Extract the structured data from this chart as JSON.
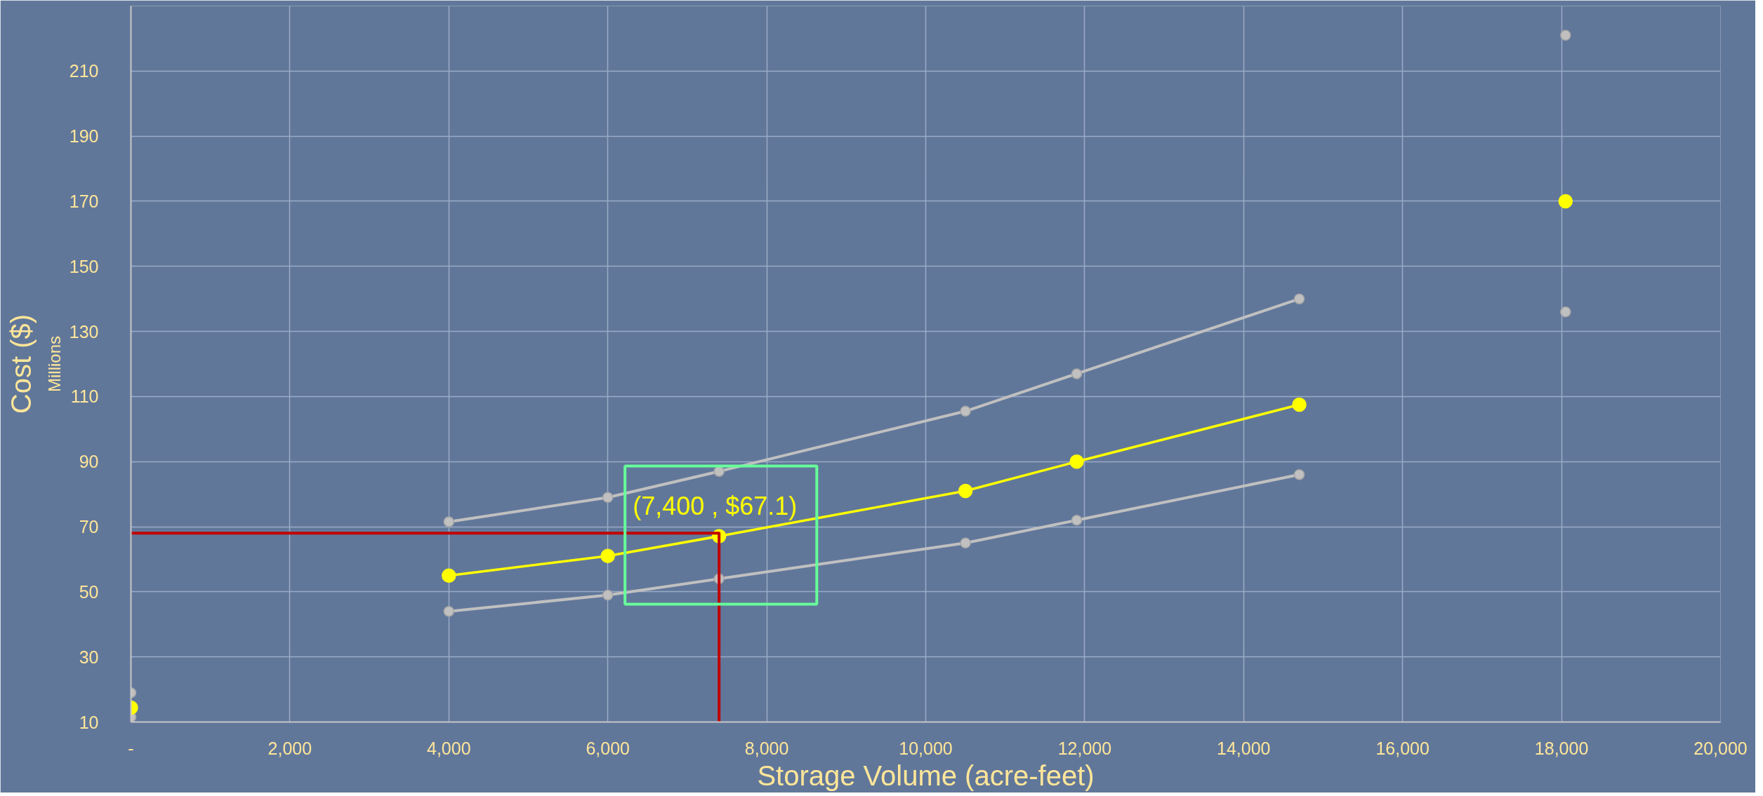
{
  "chart_data": {
    "type": "line",
    "xlabel": "Storage Volume (acre-feet)",
    "ylabel": "Cost ($)",
    "annotations": [
      "Millions",
      {
        "text": "(7,400 , $67.1)",
        "x": 7400,
        "y": 67.1
      }
    ],
    "series": [
      {
        "type": "line",
        "color": "#c0c0c0",
        "x": [
          4000,
          6000,
          7400,
          10500,
          11900,
          14700
        ],
        "values": [
          71.5,
          79,
          87,
          105.5,
          117,
          140
        ],
        "marker": "circle"
      },
      {
        "type": "line",
        "color": "#c0c0c0",
        "x": [
          4000,
          6000,
          7400,
          10500,
          11900,
          14700
        ],
        "values": [
          44,
          49,
          54,
          65,
          72,
          86
        ],
        "marker": "circle"
      },
      {
        "type": "line",
        "color": "#ffff00",
        "x": [
          4000,
          6000,
          7400,
          10500,
          11900,
          14700
        ],
        "values": [
          55,
          61,
          67.1,
          81,
          90,
          107.5
        ],
        "marker": "circle"
      },
      {
        "type": "scatter",
        "color": "#c0c0c0",
        "x": [
          0,
          0,
          18050
        ],
        "values": [
          19,
          11.5,
          221
        ],
        "marker": "circle"
      },
      {
        "type": "scatter",
        "color": "#c0c0c0",
        "x": [
          18050
        ],
        "values": [
          136
        ],
        "marker": "circle"
      },
      {
        "type": "scatter",
        "color": "#ffff00",
        "x": [
          0,
          18050
        ],
        "values": [
          14.4,
          170
        ],
        "marker": "circle"
      },
      {
        "color": "#c00000",
        "x": [
          0,
          7400,
          7400
        ],
        "values": [
          68,
          68,
          10
        ],
        "marker": "none"
      }
    ],
    "xlim": [
      0,
      20000
    ],
    "ylim": [
      10,
      230
    ],
    "xticks": [
      {
        "value": 0,
        "label": "-"
      },
      {
        "value": 2000,
        "label": "2,000"
      },
      {
        "value": 4000,
        "label": "4,000"
      },
      {
        "value": 6000,
        "label": "6,000"
      },
      {
        "value": 8000,
        "label": "8,000"
      },
      {
        "value": 10000,
        "label": "10,000"
      },
      {
        "value": 12000,
        "label": "12,000"
      },
      {
        "value": 14000,
        "label": "14,000"
      },
      {
        "value": 16000,
        "label": "16,000"
      },
      {
        "value": 18000,
        "label": "18,000"
      },
      {
        "value": 20000,
        "label": "20,000"
      }
    ],
    "yticks": [
      10,
      30,
      50,
      70,
      90,
      110,
      130,
      150,
      170,
      190,
      210
    ],
    "grid": true
  }
}
